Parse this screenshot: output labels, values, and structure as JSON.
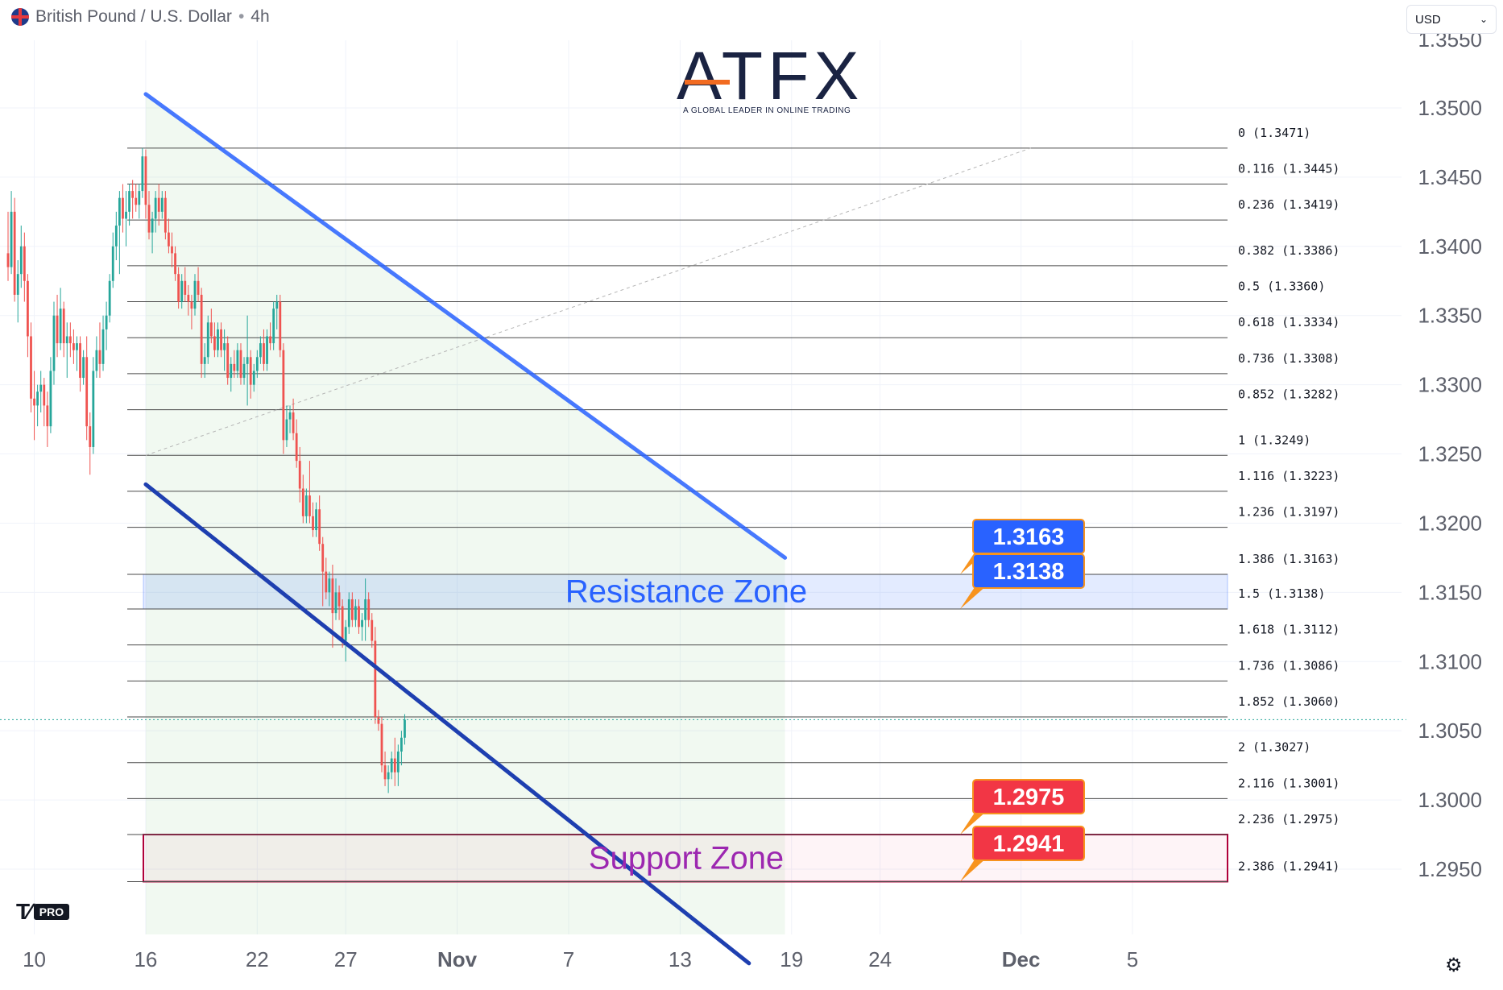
{
  "header": {
    "symbol": "British Pound / U.S. Dollar",
    "separator": "•",
    "interval": "4h"
  },
  "currency_selector": {
    "value": "USD"
  },
  "logo": {
    "name": "ATFX",
    "tagline": "A GLOBAL LEADER IN ONLINE TRADING"
  },
  "branding": {
    "badge": "PRO"
  },
  "icons": {
    "flag": "gb-us-flag-icon",
    "tradingview": "tradingview-logo-icon",
    "settings": "settings-icon",
    "dropdown": "chevron-down-icon"
  },
  "colors": {
    "up": "#26a69a",
    "down": "#ef5350",
    "channel_upper": "#2962ff",
    "channel_lower": "#1e3fb0",
    "resistance": "#2962ff",
    "support": "#9c27b0",
    "label_blue": "#2962ff",
    "label_red": "#f23645"
  },
  "chart_data": {
    "type": "candlestick",
    "title": "",
    "price_axis": {
      "min": 1.2895,
      "max": 1.3535,
      "ticks": [
        1.35,
        1.345,
        1.34,
        1.335,
        1.33,
        1.325,
        1.32,
        1.315,
        1.31,
        1.305,
        1.3,
        1.295
      ],
      "tick_labels": [
        "1.3500",
        "1.3450",
        "1.3400",
        "1.3350",
        "1.3300",
        "1.3250",
        "1.3200",
        "1.3150",
        "1.3100",
        "1.3050",
        "1.3000",
        "1.2950"
      ],
      "top_partial_label": "1.3550"
    },
    "time_axis": {
      "labels": [
        {
          "label": "10",
          "index": 8,
          "bold": false
        },
        {
          "label": "16",
          "index": 42,
          "bold": false
        },
        {
          "label": "22",
          "index": 76,
          "bold": false
        },
        {
          "label": "27",
          "index": 103,
          "bold": false
        },
        {
          "label": "Nov",
          "index": 137,
          "bold": true
        },
        {
          "label": "7",
          "index": 171,
          "bold": false
        },
        {
          "label": "13",
          "index": 205,
          "bold": false
        },
        {
          "label": "19",
          "index": 239,
          "bold": false
        },
        {
          "label": "24",
          "index": 266,
          "bold": false
        },
        {
          "label": "Dec",
          "index": 309,
          "bold": true
        },
        {
          "label": "5",
          "index": 343,
          "bold": false
        }
      ]
    },
    "candles": [
      [
        1.3395,
        1.3425,
        1.3375,
        1.3385
      ],
      [
        1.3385,
        1.344,
        1.338,
        1.3425
      ],
      [
        1.3425,
        1.3435,
        1.336,
        1.3365
      ],
      [
        1.3365,
        1.339,
        1.3345,
        1.338
      ],
      [
        1.338,
        1.3415,
        1.337,
        1.34
      ],
      [
        1.34,
        1.341,
        1.336,
        1.3375
      ],
      [
        1.3375,
        1.338,
        1.332,
        1.3335
      ],
      [
        1.3335,
        1.3345,
        1.328,
        1.329
      ],
      [
        1.329,
        1.331,
        1.326,
        1.3285
      ],
      [
        1.3285,
        1.33,
        1.327,
        1.3295
      ],
      [
        1.3295,
        1.331,
        1.328,
        1.33
      ],
      [
        1.33,
        1.3305,
        1.327,
        1.3285
      ],
      [
        1.3285,
        1.3295,
        1.3255,
        1.327
      ],
      [
        1.327,
        1.332,
        1.3265,
        1.331
      ],
      [
        1.331,
        1.336,
        1.33,
        1.335
      ],
      [
        1.335,
        1.3365,
        1.332,
        1.333
      ],
      [
        1.333,
        1.337,
        1.3325,
        1.3355
      ],
      [
        1.3355,
        1.336,
        1.332,
        1.333
      ],
      [
        1.333,
        1.3345,
        1.3305,
        1.3335
      ],
      [
        1.3335,
        1.3345,
        1.332,
        1.333
      ],
      [
        1.333,
        1.334,
        1.3315,
        1.3325
      ],
      [
        1.3325,
        1.3335,
        1.331,
        1.333
      ],
      [
        1.333,
        1.3335,
        1.3295,
        1.3305
      ],
      [
        1.3305,
        1.3325,
        1.33,
        1.332
      ],
      [
        1.332,
        1.3335,
        1.326,
        1.327
      ],
      [
        1.327,
        1.328,
        1.3235,
        1.3255
      ],
      [
        1.3255,
        1.332,
        1.325,
        1.331
      ],
      [
        1.331,
        1.3335,
        1.3305,
        1.3325
      ],
      [
        1.3325,
        1.3345,
        1.3305,
        1.3315
      ],
      [
        1.3315,
        1.335,
        1.331,
        1.334
      ],
      [
        1.334,
        1.336,
        1.3325,
        1.335
      ],
      [
        1.335,
        1.338,
        1.3345,
        1.3375
      ],
      [
        1.3375,
        1.341,
        1.337,
        1.34
      ],
      [
        1.34,
        1.3425,
        1.339,
        1.3415
      ],
      [
        1.3415,
        1.344,
        1.338,
        1.3435
      ],
      [
        1.3435,
        1.3445,
        1.341,
        1.342
      ],
      [
        1.342,
        1.344,
        1.34,
        1.3425
      ],
      [
        1.3425,
        1.3445,
        1.3415,
        1.344
      ],
      [
        1.344,
        1.3448,
        1.342,
        1.3435
      ],
      [
        1.3435,
        1.3445,
        1.3425,
        1.343
      ],
      [
        1.343,
        1.3445,
        1.342,
        1.344
      ],
      [
        1.344,
        1.3471,
        1.3435,
        1.3465
      ],
      [
        1.3465,
        1.347,
        1.342,
        1.343
      ],
      [
        1.343,
        1.344,
        1.3405,
        1.341
      ],
      [
        1.341,
        1.3425,
        1.3395,
        1.342
      ],
      [
        1.342,
        1.344,
        1.341,
        1.3435
      ],
      [
        1.3435,
        1.3445,
        1.3415,
        1.3425
      ],
      [
        1.3425,
        1.344,
        1.342,
        1.3435
      ],
      [
        1.3435,
        1.344,
        1.3405,
        1.341
      ],
      [
        1.341,
        1.342,
        1.3395,
        1.34
      ],
      [
        1.34,
        1.341,
        1.3385,
        1.3395
      ],
      [
        1.3395,
        1.34,
        1.3375,
        1.338
      ],
      [
        1.338,
        1.3385,
        1.3355,
        1.336
      ],
      [
        1.336,
        1.338,
        1.3355,
        1.3375
      ],
      [
        1.3375,
        1.3385,
        1.336,
        1.3365
      ],
      [
        1.3365,
        1.3372,
        1.335,
        1.336
      ],
      [
        1.336,
        1.3365,
        1.334,
        1.3355
      ],
      [
        1.3355,
        1.338,
        1.335,
        1.3375
      ],
      [
        1.3375,
        1.3385,
        1.336,
        1.3365
      ],
      [
        1.3365,
        1.337,
        1.3305,
        1.3315
      ],
      [
        1.3315,
        1.333,
        1.3305,
        1.332
      ],
      [
        1.332,
        1.335,
        1.3315,
        1.3345
      ],
      [
        1.3345,
        1.3355,
        1.333,
        1.3335
      ],
      [
        1.3335,
        1.3345,
        1.332,
        1.3325
      ],
      [
        1.3325,
        1.3345,
        1.332,
        1.334
      ],
      [
        1.334,
        1.3345,
        1.332,
        1.3325
      ],
      [
        1.3325,
        1.334,
        1.331,
        1.333
      ],
      [
        1.333,
        1.3335,
        1.33,
        1.3305
      ],
      [
        1.3305,
        1.332,
        1.3295,
        1.3315
      ],
      [
        1.3315,
        1.3325,
        1.3305,
        1.331
      ],
      [
        1.331,
        1.333,
        1.3305,
        1.3325
      ],
      [
        1.3325,
        1.333,
        1.33,
        1.3305
      ],
      [
        1.3305,
        1.332,
        1.33,
        1.3315
      ],
      [
        1.3315,
        1.335,
        1.3285,
        1.332
      ],
      [
        1.332,
        1.3325,
        1.329,
        1.33
      ],
      [
        1.33,
        1.3315,
        1.3295,
        1.331
      ],
      [
        1.331,
        1.3325,
        1.3305,
        1.332
      ],
      [
        1.332,
        1.3335,
        1.3315,
        1.333
      ],
      [
        1.333,
        1.334,
        1.331,
        1.3315
      ],
      [
        1.3315,
        1.334,
        1.331,
        1.3335
      ],
      [
        1.3335,
        1.3345,
        1.3325,
        1.333
      ],
      [
        1.333,
        1.336,
        1.3325,
        1.3355
      ],
      [
        1.3355,
        1.3365,
        1.334,
        1.336
      ],
      [
        1.336,
        1.3365,
        1.332,
        1.3325
      ],
      [
        1.3325,
        1.333,
        1.325,
        1.326
      ],
      [
        1.326,
        1.3285,
        1.3255,
        1.3275
      ],
      [
        1.3275,
        1.3285,
        1.3265,
        1.328
      ],
      [
        1.328,
        1.329,
        1.326,
        1.3265
      ],
      [
        1.3265,
        1.3275,
        1.324,
        1.3245
      ],
      [
        1.3245,
        1.3255,
        1.3215,
        1.3225
      ],
      [
        1.3225,
        1.3235,
        1.32,
        1.3205
      ],
      [
        1.3205,
        1.3225,
        1.32,
        1.322
      ],
      [
        1.322,
        1.3245,
        1.32,
        1.3205
      ],
      [
        1.3205,
        1.3215,
        1.319,
        1.3195
      ],
      [
        1.3195,
        1.3215,
        1.319,
        1.321
      ],
      [
        1.321,
        1.322,
        1.318,
        1.3185
      ],
      [
        1.3185,
        1.319,
        1.314,
        1.3165
      ],
      [
        1.3165,
        1.3175,
        1.3145,
        1.315
      ],
      [
        1.315,
        1.3165,
        1.314,
        1.316
      ],
      [
        1.316,
        1.317,
        1.311,
        1.3135
      ],
      [
        1.3135,
        1.316,
        1.313,
        1.315
      ],
      [
        1.315,
        1.3155,
        1.313,
        1.314
      ],
      [
        1.314,
        1.3145,
        1.311,
        1.3115
      ],
      [
        1.3115,
        1.313,
        1.31,
        1.3125
      ],
      [
        1.3125,
        1.315,
        1.312,
        1.3145
      ],
      [
        1.3145,
        1.315,
        1.3125,
        1.313
      ],
      [
        1.313,
        1.3145,
        1.3125,
        1.314
      ],
      [
        1.314,
        1.3145,
        1.312,
        1.3125
      ],
      [
        1.3125,
        1.3135,
        1.3115,
        1.313
      ],
      [
        1.313,
        1.316,
        1.3115,
        1.3145
      ],
      [
        1.3145,
        1.315,
        1.3125,
        1.313
      ],
      [
        1.313,
        1.3135,
        1.311,
        1.3115
      ],
      [
        1.3115,
        1.3125,
        1.3055,
        1.306
      ],
      [
        1.306,
        1.3065,
        1.305,
        1.3055
      ],
      [
        1.3055,
        1.306,
        1.302,
        1.3025
      ],
      [
        1.3025,
        1.3035,
        1.301,
        1.3015
      ],
      [
        1.3015,
        1.3025,
        1.3005,
        1.302
      ],
      [
        1.302,
        1.3035,
        1.3015,
        1.303
      ],
      [
        1.303,
        1.3045,
        1.301,
        1.302
      ],
      [
        1.302,
        1.304,
        1.301,
        1.3035
      ],
      [
        1.3035,
        1.305,
        1.3025,
        1.3045
      ],
      [
        1.3045,
        1.3062,
        1.304,
        1.3058
      ]
    ],
    "fibonacci": [
      {
        "label": "0 (1.3471)",
        "value": 1.3471
      },
      {
        "label": "0.116 (1.3445)",
        "value": 1.3445
      },
      {
        "label": "0.236 (1.3419)",
        "value": 1.3419
      },
      {
        "label": "0.382 (1.3386)",
        "value": 1.3386
      },
      {
        "label": "0.5 (1.3360)",
        "value": 1.336
      },
      {
        "label": "0.618 (1.3334)",
        "value": 1.3334
      },
      {
        "label": "0.736 (1.3308)",
        "value": 1.3308
      },
      {
        "label": "0.852 (1.3282)",
        "value": 1.3282
      },
      {
        "label": "1 (1.3249)",
        "value": 1.3249
      },
      {
        "label": "1.116 (1.3223)",
        "value": 1.3223
      },
      {
        "label": "1.236 (1.3197)",
        "value": 1.3197
      },
      {
        "label": "1.386 (1.3163)",
        "value": 1.3163
      },
      {
        "label": "1.5 (1.3138)",
        "value": 1.3138
      },
      {
        "label": "1.618 (1.3112)",
        "value": 1.3112
      },
      {
        "label": "1.736 (1.3086)",
        "value": 1.3086
      },
      {
        "label": "1.852 (1.3060)",
        "value": 1.306
      },
      {
        "label": "2 (1.3027)",
        "value": 1.3027
      },
      {
        "label": "2.116 (1.3001)",
        "value": 1.3001
      },
      {
        "label": "2.236 (1.2975)",
        "value": 1.2975
      },
      {
        "label": "2.386 (1.2941)",
        "value": 1.2941
      }
    ],
    "zones": [
      {
        "label": "Resistance Zone",
        "top": 1.3163,
        "bottom": 1.3138
      },
      {
        "label": "Support Zone",
        "top": 1.2975,
        "bottom": 1.2941
      }
    ],
    "price_labels": [
      {
        "text": "1.3163",
        "value": 1.3163,
        "color": "blue"
      },
      {
        "text": "1.3138",
        "value": 1.3138,
        "color": "blue"
      },
      {
        "text": "1.2975",
        "value": 1.2975,
        "color": "red"
      },
      {
        "text": "1.2941",
        "value": 1.2941,
        "color": "red"
      }
    ],
    "channel": {
      "upper": {
        "from": {
          "index": 42,
          "price": 1.351
        },
        "to": {
          "index": 237,
          "price": 1.3175
        }
      },
      "lower": {
        "from": {
          "index": 42,
          "price": 1.3228
        },
        "to": {
          "index": 226,
          "price": 1.2882
        }
      }
    },
    "fib_anchor": {
      "from": {
        "index": 42,
        "price": 1.3249
      },
      "to": {
        "index": 312,
        "price": 1.3471
      }
    },
    "last_price": 1.3058
  }
}
